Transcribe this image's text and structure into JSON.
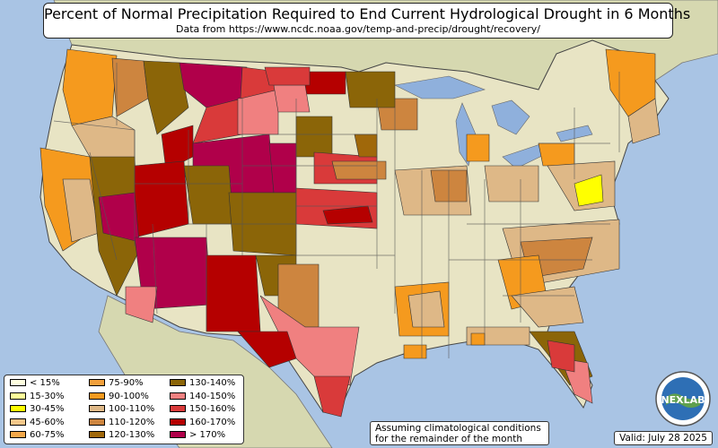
{
  "title": "Percent of Normal Precipitation Required to End Current Hydrological Drought in 6 Months",
  "subtitle": "Data from https://www.ncdc.noaa.gov/temp-and-precip/drought/recovery/",
  "note_line1": "Assuming climatological conditions",
  "note_line2": "for the remainder of the month",
  "valid": "Valid: July 28 2025",
  "logo_text": "NEXLAB",
  "colors": {
    "ocean": "#a9c4e4",
    "land": "#e8e4c4",
    "foreign": "#d6d8b0",
    "lakes": "#8fb0dc",
    "borders": "#555555"
  },
  "legend": [
    {
      "label": "< 15%",
      "color": "#ffffe0"
    },
    {
      "label": "15-30%",
      "color": "#ffff99"
    },
    {
      "label": "30-45%",
      "color": "#ffff00"
    },
    {
      "label": "45-60%",
      "color": "#f5c78a"
    },
    {
      "label": "60-75%",
      "color": "#f4a84a"
    },
    {
      "label": "75-90%",
      "color": "#f2a03c"
    },
    {
      "label": "90-100%",
      "color": "#f59a1e"
    },
    {
      "label": "100-110%",
      "color": "#deb887"
    },
    {
      "label": "110-120%",
      "color": "#cd853f"
    },
    {
      "label": "120-130%",
      "color": "#a0680a"
    },
    {
      "label": "130-140%",
      "color": "#8b6508"
    },
    {
      "label": "140-150%",
      "color": "#f08080"
    },
    {
      "label": "150-160%",
      "color": "#d93a3a"
    },
    {
      "label": "160-170%",
      "color": "#b50000"
    },
    {
      "label": "> 170%",
      "color": "#b0004a"
    }
  ]
}
